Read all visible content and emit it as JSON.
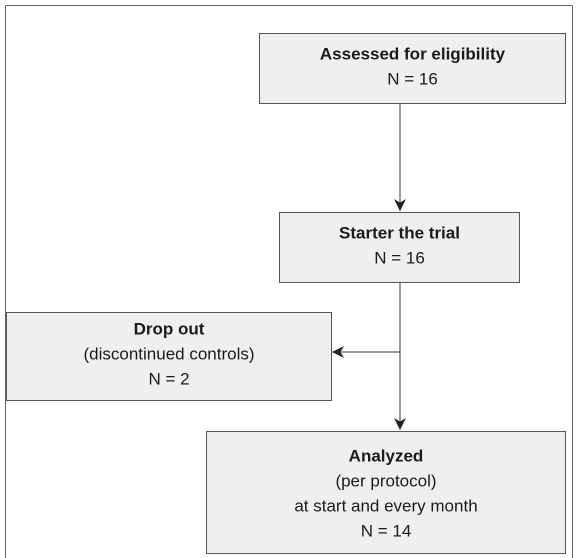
{
  "nodes": [
    {
      "lines": [
        "Assessed for eligibility",
        "N = 16"
      ]
    },
    {
      "lines": [
        "Starter the trial",
        "N = 16"
      ]
    },
    {
      "lines": [
        "Drop out",
        "(discontinued controls)",
        "N = 2"
      ]
    },
    {
      "lines": [
        "Analyzed",
        "(per protocol)",
        "at start and every month",
        "N = 14"
      ]
    }
  ]
}
